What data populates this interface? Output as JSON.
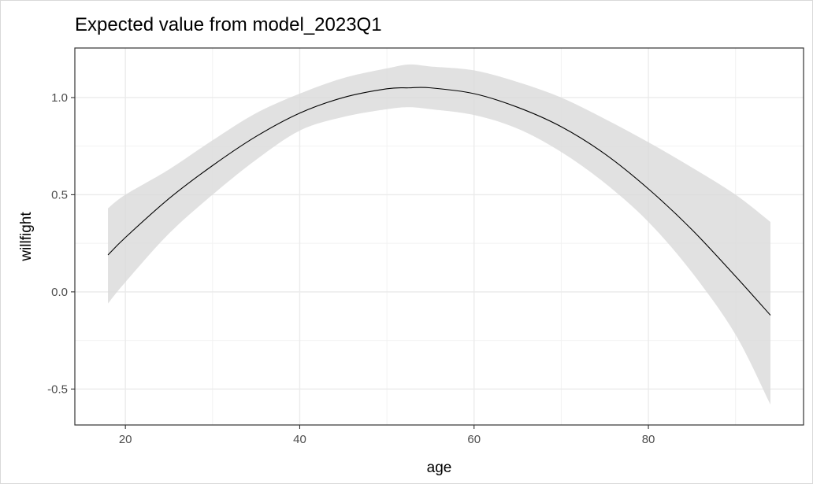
{
  "chart_data": {
    "type": "line",
    "title": "Expected value from model_2023Q1",
    "xlabel": "age",
    "ylabel": "willfight",
    "xlim": [
      14.2,
      97.8
    ],
    "ylim": [
      -0.685,
      1.255
    ],
    "x_ticks": [
      20,
      40,
      60,
      80
    ],
    "x_tick_labels": [
      "20",
      "40",
      "60",
      "80"
    ],
    "y_ticks": [
      -0.5,
      0.0,
      0.5,
      1.0
    ],
    "y_tick_labels": [
      "-0.5",
      "0.0",
      "0.5",
      "1.0"
    ],
    "grid": true,
    "legend": "none",
    "colors": {
      "line": "#000000",
      "ribbon": "#d9d9d9",
      "grid_major": "#ebebeb",
      "grid_minor": "#f2f2f2",
      "panel_border": "#333333"
    },
    "series": [
      {
        "x": [
          18,
          20,
          25,
          30,
          35,
          40,
          45,
          50,
          52.5,
          55,
          60,
          65,
          70,
          75,
          80,
          85,
          90,
          94
        ],
        "y": [
          0.19,
          0.28,
          0.48,
          0.65,
          0.8,
          0.92,
          1.0,
          1.045,
          1.05,
          1.05,
          1.02,
          0.95,
          0.85,
          0.71,
          0.53,
          0.32,
          0.08,
          -0.12
        ],
        "lower": [
          -0.06,
          0.05,
          0.3,
          0.5,
          0.68,
          0.83,
          0.9,
          0.94,
          0.95,
          0.94,
          0.91,
          0.84,
          0.72,
          0.56,
          0.36,
          0.1,
          -0.22,
          -0.58
        ],
        "upper": [
          0.43,
          0.5,
          0.63,
          0.78,
          0.92,
          1.02,
          1.1,
          1.15,
          1.17,
          1.16,
          1.14,
          1.08,
          1.0,
          0.89,
          0.77,
          0.64,
          0.5,
          0.36
        ]
      }
    ]
  }
}
